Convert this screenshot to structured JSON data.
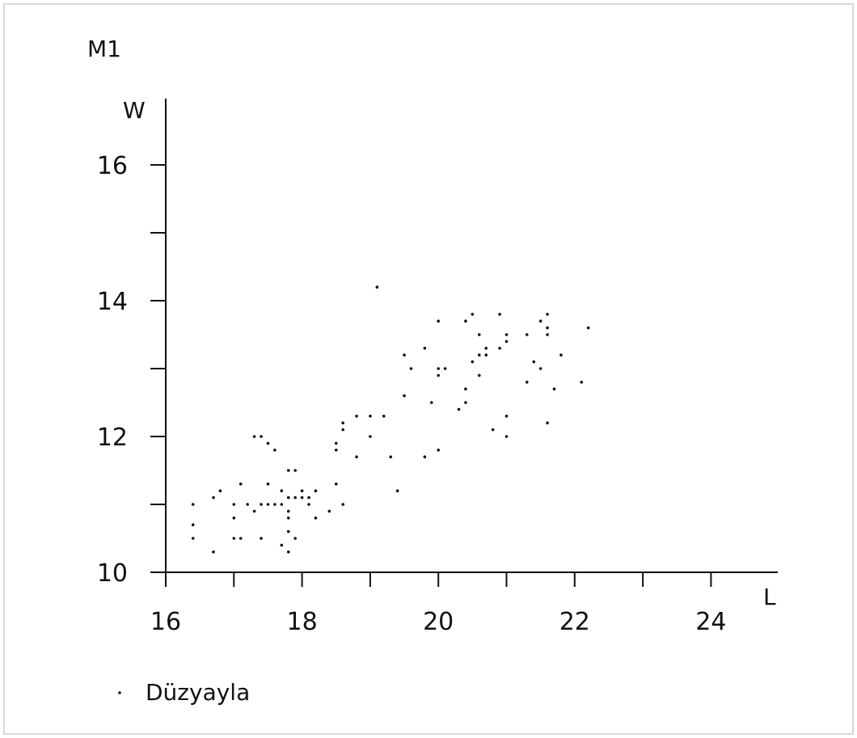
{
  "chart_data": {
    "type": "scatter",
    "title": "M1",
    "xlabel": "L",
    "ylabel": "W",
    "xlim": [
      16,
      25
    ],
    "ylim": [
      10,
      16.5
    ],
    "x_ticks_labeled": [
      16,
      18,
      20,
      22,
      24
    ],
    "x_ticks_minor": [
      17,
      19,
      21,
      23
    ],
    "y_ticks_labeled": [
      10,
      12,
      14,
      16
    ],
    "y_ticks_minor": [
      11,
      13,
      15
    ],
    "grid": false,
    "legend": {
      "position": "bottom-left",
      "entries": [
        "Düzyayla"
      ]
    },
    "series": [
      {
        "name": "Düzyayla",
        "color": "#111111",
        "points": [
          [
            16.4,
            11.0
          ],
          [
            16.4,
            10.7
          ],
          [
            16.4,
            10.5
          ],
          [
            16.7,
            10.3
          ],
          [
            16.7,
            11.1
          ],
          [
            16.8,
            11.2
          ],
          [
            17.0,
            11.0
          ],
          [
            17.0,
            10.8
          ],
          [
            17.0,
            10.5
          ],
          [
            17.1,
            10.5
          ],
          [
            17.1,
            11.3
          ],
          [
            17.2,
            11.0
          ],
          [
            17.3,
            10.9
          ],
          [
            17.3,
            12.0
          ],
          [
            17.4,
            12.0
          ],
          [
            17.4,
            11.0
          ],
          [
            17.4,
            10.5
          ],
          [
            17.5,
            11.9
          ],
          [
            17.5,
            11.3
          ],
          [
            17.5,
            11.0
          ],
          [
            17.6,
            11.8
          ],
          [
            17.6,
            11.0
          ],
          [
            17.7,
            11.2
          ],
          [
            17.7,
            11.0
          ],
          [
            17.7,
            10.4
          ],
          [
            17.8,
            11.5
          ],
          [
            17.8,
            11.1
          ],
          [
            17.8,
            10.9
          ],
          [
            17.8,
            10.8
          ],
          [
            17.8,
            10.6
          ],
          [
            17.8,
            10.3
          ],
          [
            17.9,
            11.5
          ],
          [
            17.9,
            11.1
          ],
          [
            17.9,
            10.5
          ],
          [
            18.0,
            11.2
          ],
          [
            18.0,
            11.1
          ],
          [
            18.1,
            11.1
          ],
          [
            18.1,
            11.0
          ],
          [
            18.2,
            11.2
          ],
          [
            18.2,
            10.8
          ],
          [
            18.4,
            10.9
          ],
          [
            18.5,
            11.9
          ],
          [
            18.5,
            11.8
          ],
          [
            18.5,
            11.3
          ],
          [
            18.6,
            12.2
          ],
          [
            18.6,
            12.1
          ],
          [
            18.6,
            11.0
          ],
          [
            18.8,
            12.3
          ],
          [
            18.8,
            11.7
          ],
          [
            19.0,
            12.3
          ],
          [
            19.0,
            12.0
          ],
          [
            19.1,
            14.2
          ],
          [
            19.2,
            12.3
          ],
          [
            19.3,
            11.7
          ],
          [
            19.4,
            11.2
          ],
          [
            19.5,
            13.2
          ],
          [
            19.5,
            12.6
          ],
          [
            19.6,
            13.0
          ],
          [
            19.8,
            13.3
          ],
          [
            19.8,
            11.7
          ],
          [
            19.9,
            12.5
          ],
          [
            20.0,
            13.7
          ],
          [
            20.0,
            13.0
          ],
          [
            20.0,
            12.9
          ],
          [
            20.0,
            11.8
          ],
          [
            20.1,
            13.0
          ],
          [
            20.3,
            12.4
          ],
          [
            20.4,
            13.7
          ],
          [
            20.4,
            12.7
          ],
          [
            20.4,
            12.5
          ],
          [
            20.5,
            13.8
          ],
          [
            20.5,
            13.1
          ],
          [
            20.6,
            13.5
          ],
          [
            20.6,
            13.2
          ],
          [
            20.6,
            12.9
          ],
          [
            20.7,
            13.3
          ],
          [
            20.7,
            13.2
          ],
          [
            20.8,
            12.1
          ],
          [
            20.9,
            13.8
          ],
          [
            20.9,
            13.3
          ],
          [
            21.0,
            13.5
          ],
          [
            21.0,
            13.4
          ],
          [
            21.0,
            12.3
          ],
          [
            21.0,
            12.0
          ],
          [
            21.3,
            13.5
          ],
          [
            21.3,
            12.8
          ],
          [
            21.4,
            13.1
          ],
          [
            21.5,
            13.7
          ],
          [
            21.5,
            13.0
          ],
          [
            21.6,
            13.8
          ],
          [
            21.6,
            13.6
          ],
          [
            21.6,
            13.5
          ],
          [
            21.6,
            12.2
          ],
          [
            21.7,
            12.7
          ],
          [
            21.8,
            13.2
          ],
          [
            22.1,
            12.8
          ],
          [
            22.2,
            13.6
          ]
        ]
      }
    ]
  }
}
